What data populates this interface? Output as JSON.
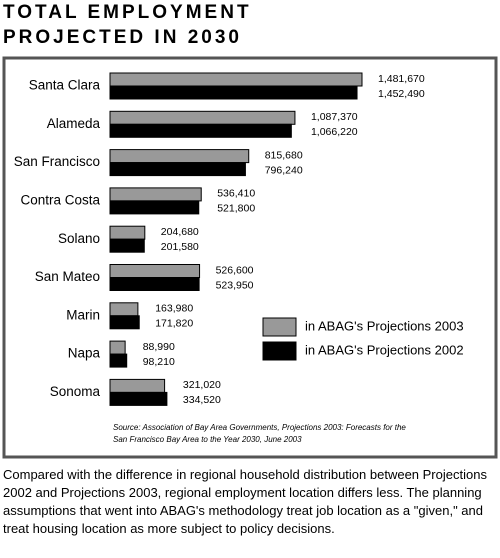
{
  "chart_data": {
    "type": "bar",
    "orientation": "horizontal",
    "title": [
      "TOTAL EMPLOYMENT",
      "PROJECTED IN 2030"
    ],
    "categories": [
      "Santa Clara",
      "Alameda",
      "San Francisco",
      "Contra Costa",
      "Solano",
      "San Mateo",
      "Marin",
      "Napa",
      "Sonoma"
    ],
    "series": [
      {
        "name": "in ABAG's Projections 2003",
        "color": "#999999",
        "values": [
          1481670,
          1087370,
          815680,
          536410,
          204680,
          526600,
          163980,
          88990,
          321020
        ],
        "value_labels": [
          "1,481,670",
          "1,087,370",
          "815,680",
          "536,410",
          "204,680",
          "526,600",
          "163,980",
          "88,990",
          "321,020"
        ]
      },
      {
        "name": "in ABAG's Projections 2002",
        "color": "#000000",
        "values": [
          1452490,
          1066220,
          796240,
          521800,
          201580,
          523950,
          171820,
          98210,
          334520
        ],
        "value_labels": [
          "1,452,490",
          "1,066,220",
          "796,240",
          "521,800",
          "201,580",
          "523,950",
          "171,820",
          "98,210",
          "334,520"
        ]
      }
    ],
    "source": [
      "Source: Association of Bay Area Governments, Projections 2003: Forecasts for the",
      "San Francisco Bay Area to the Year 2030, June 2003"
    ]
  },
  "caption": "Compared with the difference in regional household distribution between Projections 2002 and Projections 2003, regional employment location differs less.  The planning assumptions that went into ABAG's methodology treat job location as a \"given,\" and treat housing location as more subject to policy decisions."
}
